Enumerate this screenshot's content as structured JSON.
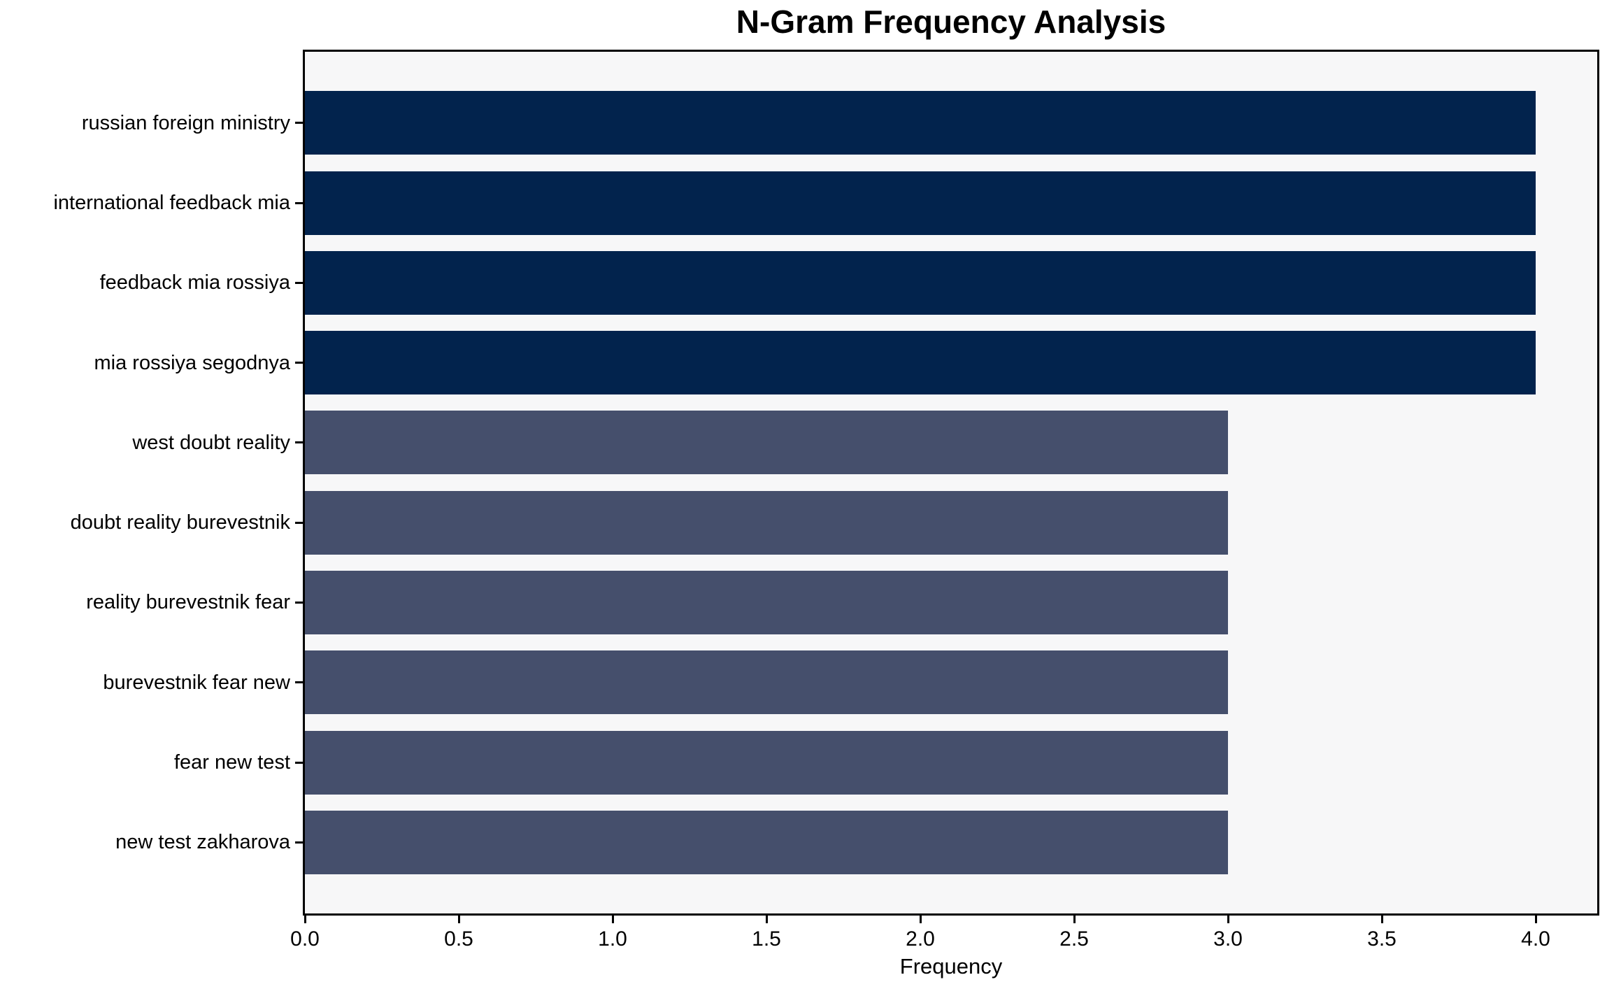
{
  "chart_data": {
    "type": "bar",
    "orientation": "horizontal",
    "title": "N-Gram Frequency Analysis",
    "xlabel": "Frequency",
    "ylabel": "",
    "categories": [
      "russian foreign ministry",
      "international feedback mia",
      "feedback mia rossiya",
      "mia rossiya segodnya",
      "west doubt reality",
      "doubt reality burevestnik",
      "reality burevestnik fear",
      "burevestnik fear new",
      "fear new test",
      "new test zakharova"
    ],
    "values": [
      4,
      4,
      4,
      4,
      3,
      3,
      3,
      3,
      3,
      3
    ],
    "bar_colors": [
      "#02234d",
      "#02234d",
      "#02234d",
      "#02234d",
      "#454f6c",
      "#454f6c",
      "#454f6c",
      "#454f6c",
      "#454f6c",
      "#454f6c"
    ],
    "xlim": [
      0,
      4.2
    ],
    "xtick_labels": [
      "0.0",
      "0.5",
      "1.0",
      "1.5",
      "2.0",
      "2.5",
      "3.0",
      "3.5",
      "4.0"
    ],
    "xtick_values": [
      0,
      0.5,
      1.0,
      1.5,
      2.0,
      2.5,
      3.0,
      3.5,
      4.0
    ],
    "grid": false,
    "legend_position": "none",
    "colors": {
      "high_freq_bar": "#02234d",
      "low_freq_bar": "#454f6c",
      "plot_background": "#f7f7f8",
      "figure_background": "#ffffff",
      "spine": "#000000",
      "text": "#000000"
    }
  }
}
